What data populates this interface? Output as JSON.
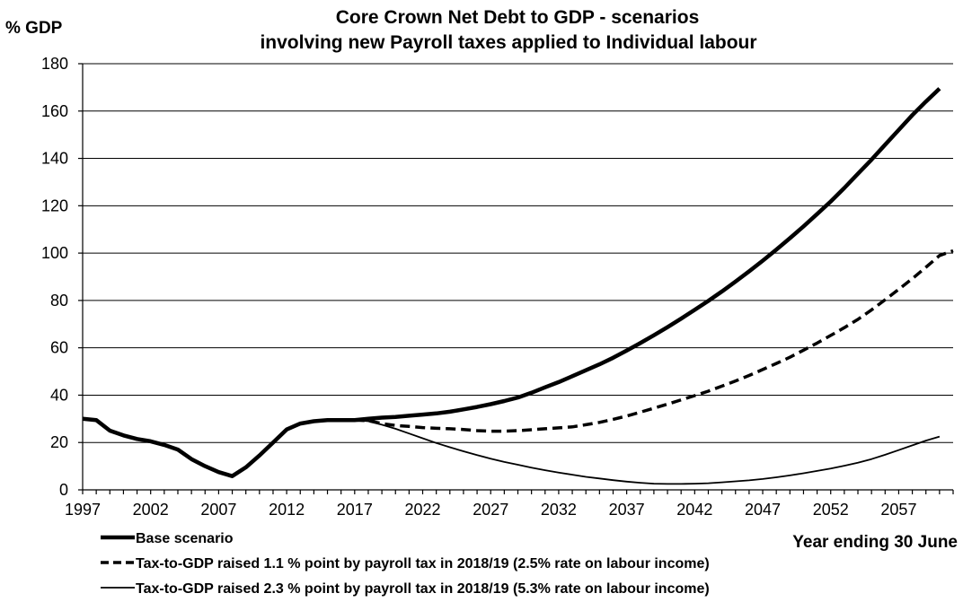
{
  "chart_data": {
    "type": "line",
    "title_line1": "Core Crown Net Debt to GDP - scenarios",
    "title_line2": "involving new Payroll taxes applied to Individual labour",
    "ylabel": "% GDP",
    "xlabel": "Year ending 30 June",
    "ylim": [
      0,
      180
    ],
    "xlim": [
      1997,
      2061
    ],
    "yticks": [
      0,
      20,
      40,
      60,
      80,
      100,
      120,
      140,
      160,
      180
    ],
    "xticks": [
      1997,
      2002,
      2007,
      2012,
      2017,
      2022,
      2027,
      2032,
      2037,
      2042,
      2047,
      2052,
      2057
    ],
    "grid": "horizontal",
    "legend_position": "bottom",
    "series": [
      {
        "name": "Base scenario",
        "style": "thick-solid",
        "color": "#000000",
        "points": [
          [
            1997,
            30
          ],
          [
            1998,
            29.5
          ],
          [
            1999,
            25
          ],
          [
            2000,
            23
          ],
          [
            2001,
            21.5
          ],
          [
            2002,
            20.5
          ],
          [
            2003,
            19
          ],
          [
            2004,
            17
          ],
          [
            2005,
            13
          ],
          [
            2006,
            10
          ],
          [
            2007,
            7.5
          ],
          [
            2008,
            5.8
          ],
          [
            2009,
            9.5
          ],
          [
            2010,
            14.5
          ],
          [
            2011,
            20
          ],
          [
            2012,
            25.5
          ],
          [
            2013,
            28
          ],
          [
            2014,
            29
          ],
          [
            2015,
            29.5
          ],
          [
            2016,
            29.5
          ],
          [
            2017,
            29.5
          ],
          [
            2018,
            30
          ],
          [
            2019,
            30.5
          ],
          [
            2020,
            30.8
          ],
          [
            2021,
            31.3
          ],
          [
            2022,
            31.8
          ],
          [
            2023,
            32.3
          ],
          [
            2024,
            33
          ],
          [
            2025,
            34
          ],
          [
            2026,
            35
          ],
          [
            2027,
            36.2
          ],
          [
            2028,
            37.5
          ],
          [
            2029,
            39
          ],
          [
            2030,
            41
          ],
          [
            2031,
            43.3
          ],
          [
            2032,
            45.5
          ],
          [
            2033,
            48
          ],
          [
            2034,
            50.5
          ],
          [
            2035,
            53
          ],
          [
            2036,
            55.8
          ],
          [
            2037,
            58.8
          ],
          [
            2038,
            62
          ],
          [
            2039,
            65.3
          ],
          [
            2040,
            68.7
          ],
          [
            2041,
            72.3
          ],
          [
            2042,
            76
          ],
          [
            2043,
            79.8
          ],
          [
            2044,
            83.8
          ],
          [
            2045,
            88
          ],
          [
            2046,
            92.3
          ],
          [
            2047,
            96.8
          ],
          [
            2048,
            101.5
          ],
          [
            2049,
            106.3
          ],
          [
            2050,
            111.3
          ],
          [
            2051,
            116.5
          ],
          [
            2052,
            121.8
          ],
          [
            2053,
            127.5
          ],
          [
            2054,
            133.5
          ],
          [
            2055,
            139.5
          ],
          [
            2056,
            145.8
          ],
          [
            2057,
            152
          ],
          [
            2058,
            158.3
          ],
          [
            2059,
            164
          ],
          [
            2060,
            169.5
          ]
        ]
      },
      {
        "name": "Tax-to-GDP raised 1.1 % point by payroll tax in 2018/19 (2.5% rate on labour income)",
        "style": "thick-dashed",
        "color": "#000000",
        "points": [
          [
            2017,
            29.5
          ],
          [
            2018,
            29.2
          ],
          [
            2019,
            28
          ],
          [
            2020,
            27.2
          ],
          [
            2021,
            26.8
          ],
          [
            2022,
            26.3
          ],
          [
            2023,
            26
          ],
          [
            2024,
            25.8
          ],
          [
            2025,
            25.5
          ],
          [
            2026,
            25
          ],
          [
            2027,
            24.8
          ],
          [
            2028,
            24.8
          ],
          [
            2029,
            25
          ],
          [
            2030,
            25.4
          ],
          [
            2031,
            25.8
          ],
          [
            2032,
            26.2
          ],
          [
            2033,
            26.6
          ],
          [
            2034,
            27.5
          ],
          [
            2035,
            28.5
          ],
          [
            2036,
            29.8
          ],
          [
            2037,
            31.2
          ],
          [
            2038,
            32.8
          ],
          [
            2039,
            34.5
          ],
          [
            2040,
            36.2
          ],
          [
            2041,
            38
          ],
          [
            2042,
            39.8
          ],
          [
            2043,
            41.7
          ],
          [
            2044,
            43.8
          ],
          [
            2045,
            46
          ],
          [
            2046,
            48.3
          ],
          [
            2047,
            50.8
          ],
          [
            2048,
            53.4
          ],
          [
            2049,
            56
          ],
          [
            2050,
            59
          ],
          [
            2051,
            62
          ],
          [
            2052,
            65.2
          ],
          [
            2053,
            68.5
          ],
          [
            2054,
            72
          ],
          [
            2055,
            76
          ],
          [
            2056,
            80.3
          ],
          [
            2057,
            84.7
          ],
          [
            2058,
            89.2
          ],
          [
            2059,
            94
          ],
          [
            2060,
            99
          ],
          [
            2061,
            101
          ]
        ]
      },
      {
        "name": "Tax-to-GDP raised 2.3 % point by payroll tax in 2018/19 (5.3% rate on labour income)",
        "style": "thin-solid",
        "color": "#000000",
        "points": [
          [
            2017,
            29.5
          ],
          [
            2018,
            29
          ],
          [
            2019,
            27.5
          ],
          [
            2020,
            25.8
          ],
          [
            2021,
            23.8
          ],
          [
            2022,
            21.8
          ],
          [
            2023,
            19.8
          ],
          [
            2024,
            18
          ],
          [
            2025,
            16.3
          ],
          [
            2026,
            14.7
          ],
          [
            2027,
            13.2
          ],
          [
            2028,
            11.8
          ],
          [
            2029,
            10.6
          ],
          [
            2030,
            9.4
          ],
          [
            2031,
            8.3
          ],
          [
            2032,
            7.3
          ],
          [
            2033,
            6.4
          ],
          [
            2034,
            5.5
          ],
          [
            2035,
            4.8
          ],
          [
            2036,
            4.1
          ],
          [
            2037,
            3.5
          ],
          [
            2038,
            3
          ],
          [
            2039,
            2.6
          ],
          [
            2040,
            2.5
          ],
          [
            2041,
            2.5
          ],
          [
            2042,
            2.6
          ],
          [
            2043,
            2.8
          ],
          [
            2044,
            3.2
          ],
          [
            2045,
            3.6
          ],
          [
            2046,
            4
          ],
          [
            2047,
            4.6
          ],
          [
            2048,
            5.3
          ],
          [
            2049,
            6.1
          ],
          [
            2050,
            7
          ],
          [
            2051,
            8
          ],
          [
            2052,
            9
          ],
          [
            2053,
            10.2
          ],
          [
            2054,
            11.5
          ],
          [
            2055,
            13
          ],
          [
            2056,
            14.8
          ],
          [
            2057,
            16.8
          ],
          [
            2058,
            18.8
          ],
          [
            2059,
            20.8
          ],
          [
            2060,
            22.5
          ]
        ]
      }
    ]
  }
}
